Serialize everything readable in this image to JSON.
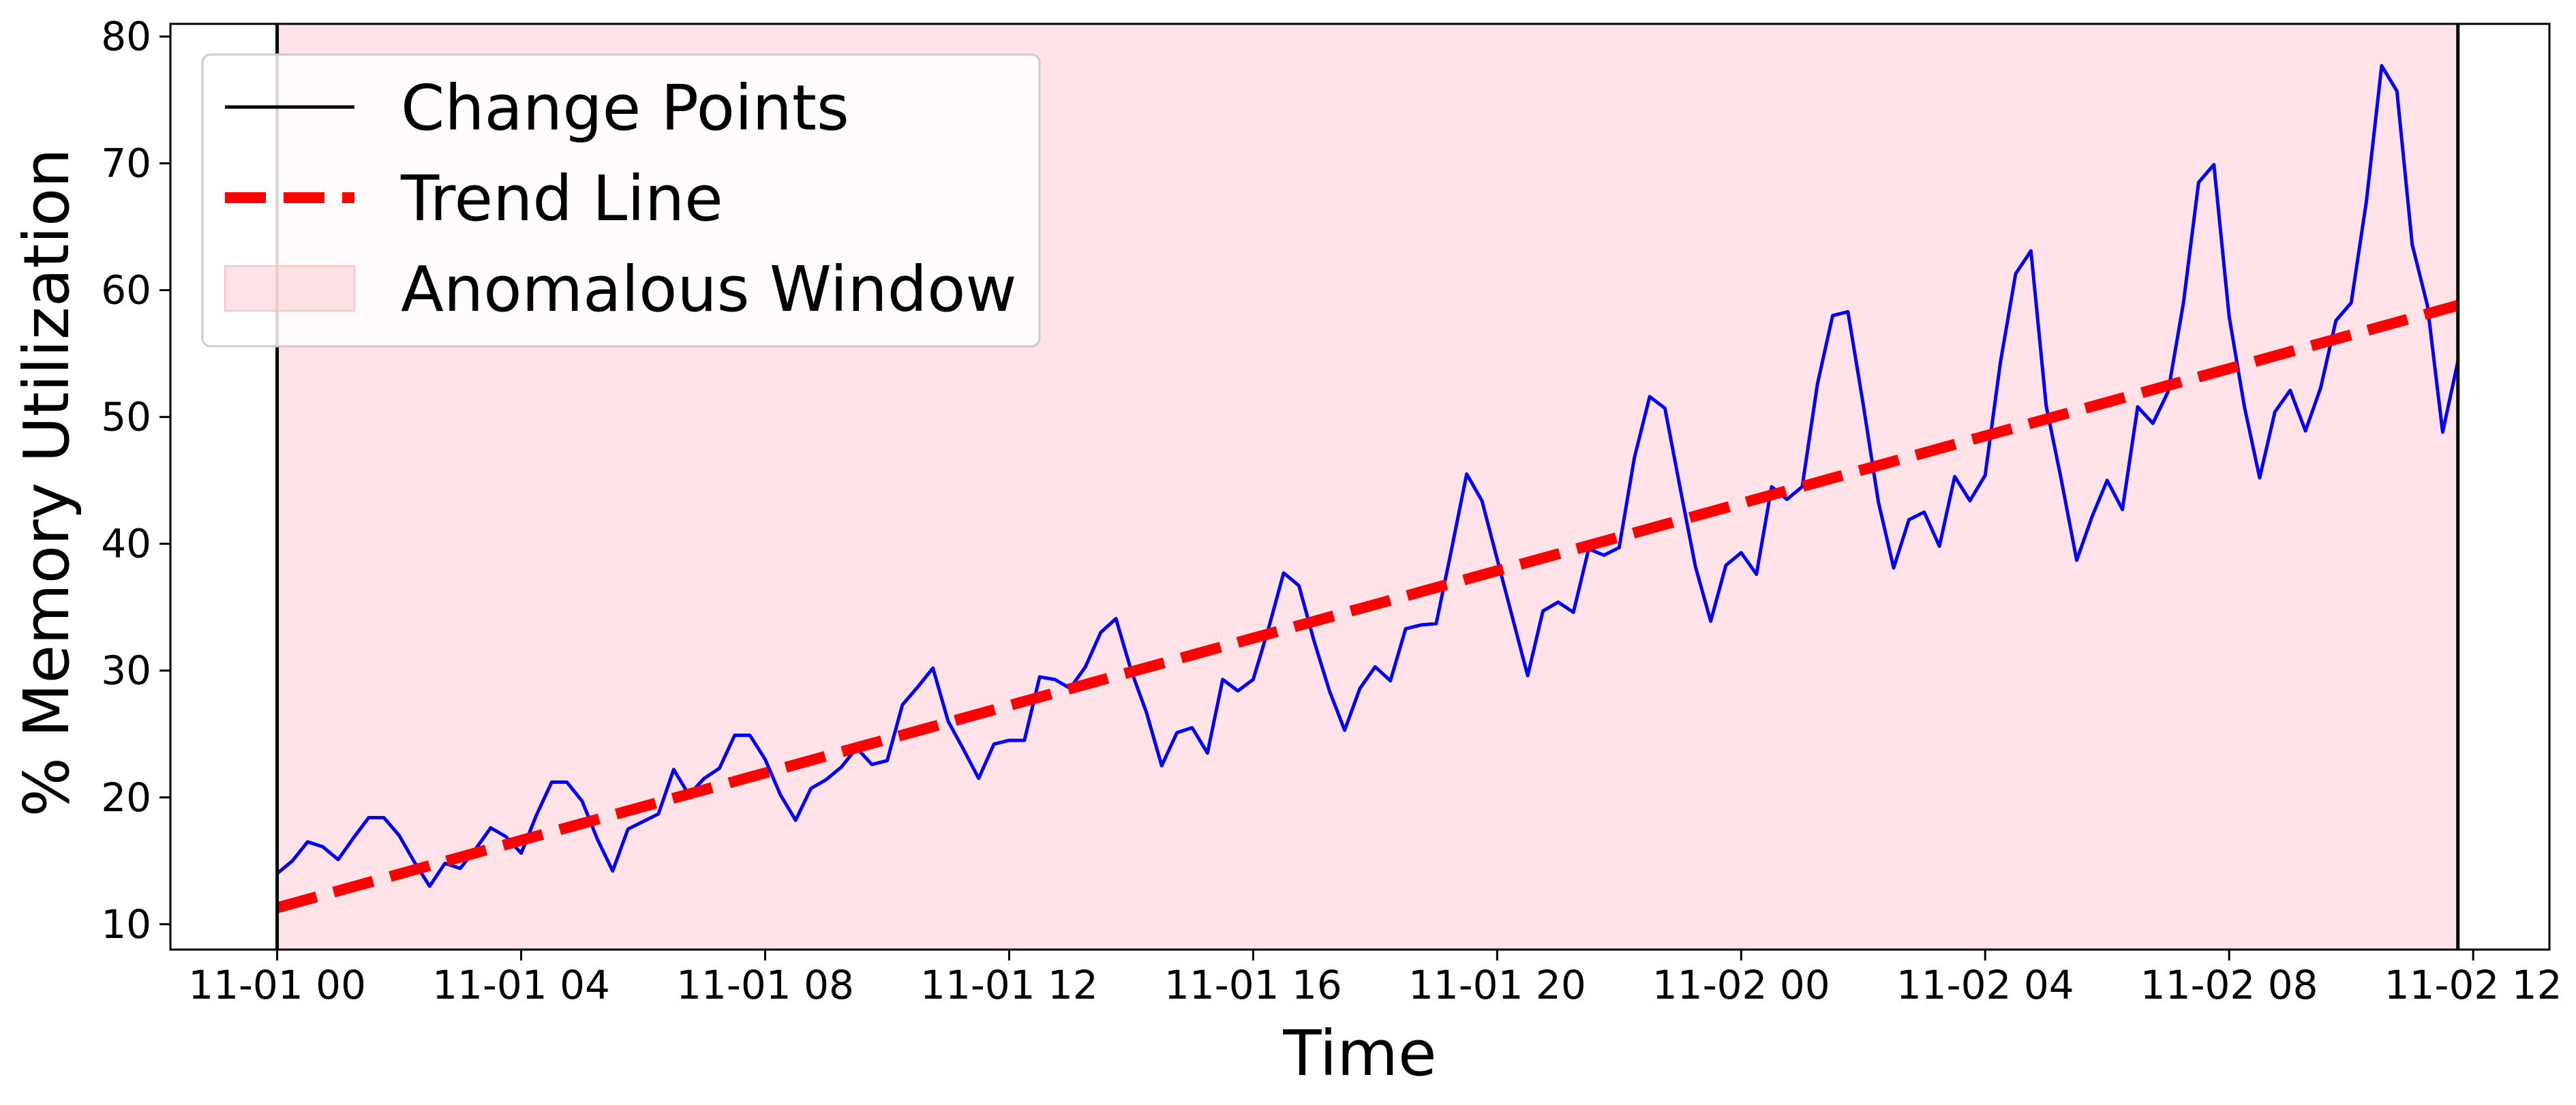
{
  "chart_data": {
    "type": "line",
    "xlabel": "Time",
    "ylabel": "% Memory Utilization",
    "xlim": [
      -1.75,
      37.25
    ],
    "ylim": [
      8,
      81
    ],
    "x_ticks": [
      {
        "label": "11-01 00",
        "hours": 0
      },
      {
        "label": "11-01 04",
        "hours": 4
      },
      {
        "label": "11-01 08",
        "hours": 8
      },
      {
        "label": "11-01 12",
        "hours": 12
      },
      {
        "label": "11-01 16",
        "hours": 16
      },
      {
        "label": "11-01 20",
        "hours": 20
      },
      {
        "label": "11-02 00",
        "hours": 24
      },
      {
        "label": "11-02 04",
        "hours": 28
      },
      {
        "label": "11-02 08",
        "hours": 32
      },
      {
        "label": "11-02 12",
        "hours": 36
      }
    ],
    "y_ticks": [
      10,
      20,
      30,
      40,
      50,
      60,
      70,
      80
    ],
    "grid": false,
    "legend": {
      "placement": "top-left",
      "entries": [
        {
          "label": "Change Points",
          "style": "solid-line",
          "color": "#000000"
        },
        {
          "label": "Trend Line",
          "style": "dashed-line",
          "color": "#ff0000"
        },
        {
          "label": "Anomalous Window",
          "style": "patch",
          "color": "#ffc0cb"
        }
      ]
    },
    "change_points": [
      0,
      35.75
    ],
    "anomalous_window": {
      "start": 0,
      "end": 35.75,
      "color": "#ffc0cb"
    },
    "trend_line": {
      "name": "Trend Line",
      "color": "#ff0000",
      "x": [
        0,
        35.75
      ],
      "y": [
        11.3,
        58.8
      ]
    },
    "series": [
      {
        "name": "% Memory Utilization",
        "color": "#0000ff",
        "x_start": 0,
        "x_step": 0.25,
        "values": [
          14.0,
          15.0,
          16.5,
          16.1,
          15.1,
          16.8,
          18.4,
          18.4,
          17.0,
          14.9,
          13.0,
          14.8,
          14.4,
          15.9,
          17.6,
          16.9,
          15.6,
          18.6,
          21.2,
          21.2,
          19.7,
          16.7,
          14.2,
          17.5,
          18.1,
          18.7,
          22.2,
          20.2,
          21.5,
          22.3,
          24.9,
          24.9,
          23.0,
          20.2,
          18.2,
          20.7,
          21.4,
          22.4,
          23.9,
          22.6,
          22.9,
          27.3,
          28.7,
          30.2,
          26.0,
          23.8,
          21.5,
          24.2,
          24.5,
          24.5,
          29.5,
          29.3,
          28.6,
          30.3,
          33.0,
          34.1,
          30.0,
          26.7,
          22.5,
          25.1,
          25.5,
          23.5,
          29.3,
          28.4,
          29.3,
          33.3,
          37.7,
          36.7,
          32.3,
          28.4,
          25.3,
          28.6,
          30.3,
          29.2,
          33.3,
          33.6,
          33.7,
          39.5,
          45.5,
          43.4,
          38.8,
          34.2,
          29.6,
          34.7,
          35.4,
          34.6,
          39.6,
          39.1,
          39.7,
          46.8,
          51.6,
          50.7,
          44.4,
          38.2,
          33.9,
          38.3,
          39.3,
          37.6,
          44.5,
          43.5,
          44.5,
          52.6,
          58.0,
          58.3,
          51.0,
          43.3,
          38.1,
          41.9,
          42.5,
          39.8,
          45.3,
          43.4,
          45.4,
          54.3,
          61.3,
          63.1,
          50.9,
          45.0,
          38.7,
          42.1,
          45.0,
          42.7,
          50.8,
          49.5,
          52.0,
          59.0,
          68.5,
          69.9,
          57.9,
          50.8,
          45.2,
          50.4,
          52.1,
          48.9,
          52.3,
          57.6,
          59.0,
          67.0,
          77.7,
          75.7,
          63.6,
          58.8,
          48.8,
          54.4
        ]
      }
    ]
  }
}
